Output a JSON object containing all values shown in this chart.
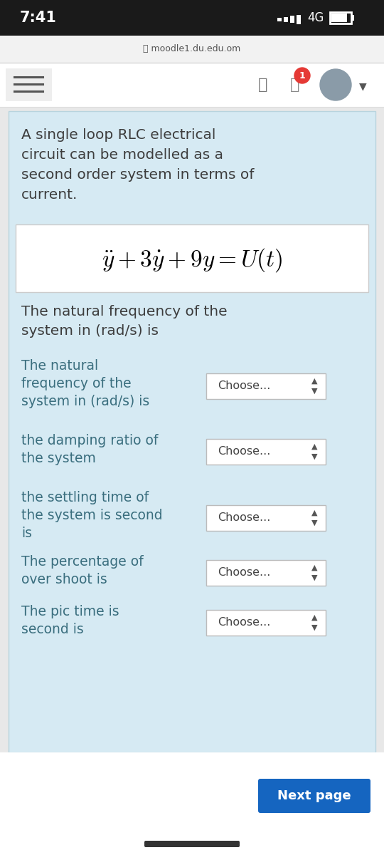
{
  "bg_color": "#e8e8e8",
  "status_bar_bg": "#1a1a1a",
  "time_text": "7:41",
  "url_text": "moodle1.du.edu.om",
  "nav_bg": "#ffffff",
  "content_bg": "#d6eaf3",
  "intro_text_lines": [
    "A single loop RLC electrical",
    "circuit can be modelled as a",
    "second order system in terms of",
    "current."
  ],
  "equation": "$\\ddot{y}+3\\dot{y}+9y=U(t)$",
  "freq_statement_lines": [
    "The natural frequency of the",
    "system in (rad/s) is"
  ],
  "questions": [
    {
      "lines": [
        "The natural",
        "frequency of the",
        "system in (rad/s) is"
      ]
    },
    {
      "lines": [
        "the damping ratio of",
        "the system"
      ]
    },
    {
      "lines": [
        "the settling time of",
        "the system is second",
        "is"
      ]
    },
    {
      "lines": [
        "The percentage of",
        "over shoot is"
      ]
    },
    {
      "lines": [
        "The pic time is",
        "second is"
      ]
    }
  ],
  "choose_text": "Choose...",
  "next_btn_text": "Next page",
  "next_btn_color": "#1565c0",
  "text_dark": "#3d3d3d",
  "text_label": "#3a6e7e",
  "btn_bg": "#ffffff",
  "btn_border": "#bbbbbb",
  "white_bg": "#ffffff"
}
